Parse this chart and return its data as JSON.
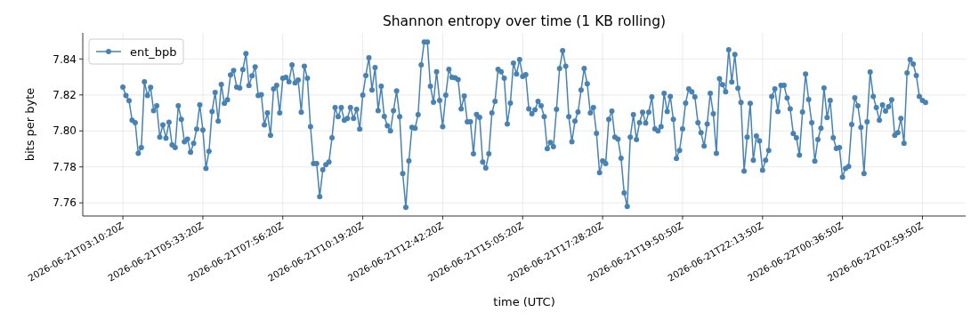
{
  "chart_data": {
    "type": "line",
    "title": "Shannon entropy over time (1 KB rolling)",
    "xlabel": "time (UTC)",
    "ylabel": "bits per byte",
    "ylim": [
      7.7527,
      7.8545
    ],
    "categories": [
      "2026-06-21T03:10:20Z",
      null,
      null,
      null,
      null,
      null,
      null,
      null,
      null,
      null,
      null,
      null,
      null,
      null,
      null,
      null,
      null,
      null,
      null,
      null,
      null,
      null,
      null,
      null,
      null,
      null,
      "2026-06-21T05:33:20Z",
      null,
      null,
      null,
      null,
      null,
      null,
      null,
      null,
      null,
      null,
      null,
      null,
      null,
      null,
      null,
      null,
      null,
      null,
      null,
      null,
      null,
      null,
      null,
      null,
      null,
      "2026-06-21T07:56:20Z",
      null,
      null,
      null,
      null,
      null,
      null,
      null,
      null,
      null,
      null,
      null,
      null,
      null,
      null,
      null,
      null,
      null,
      null,
      null,
      null,
      null,
      null,
      null,
      null,
      null,
      "2026-06-21T10:19:20Z",
      null,
      null,
      null,
      null,
      null,
      null,
      null,
      null,
      null,
      null,
      null,
      null,
      null,
      null,
      null,
      null,
      null,
      null,
      null,
      null,
      null,
      null,
      null,
      null,
      null,
      "2026-06-21T12:42:20Z",
      null,
      null,
      null,
      null,
      null,
      null,
      null,
      null,
      null,
      null,
      null,
      null,
      null,
      null,
      null,
      null,
      null,
      null,
      null,
      null,
      null,
      null,
      null,
      null,
      null,
      "2026-06-21T15:05:20Z",
      null,
      null,
      null,
      null,
      null,
      null,
      null,
      null,
      null,
      null,
      null,
      null,
      null,
      null,
      null,
      null,
      null,
      null,
      null,
      null,
      null,
      null,
      null,
      null,
      null,
      "2026-06-21T17:28:20Z",
      null,
      null,
      null,
      null,
      null,
      null,
      null,
      null,
      null,
      null,
      null,
      null,
      null,
      null,
      null,
      null,
      null,
      null,
      null,
      null,
      null,
      null,
      null,
      null,
      null,
      "2026-06-21T19:50:50Z",
      null,
      null,
      null,
      null,
      null,
      null,
      null,
      null,
      null,
      null,
      null,
      null,
      null,
      null,
      null,
      null,
      null,
      null,
      null,
      null,
      null,
      null,
      null,
      null,
      null,
      "2026-06-21T22:13:50Z",
      null,
      null,
      null,
      null,
      null,
      null,
      null,
      null,
      null,
      null,
      null,
      null,
      null,
      null,
      null,
      null,
      null,
      null,
      null,
      null,
      null,
      null,
      null,
      null,
      null,
      "2026-06-22T00:36:50Z",
      null,
      null,
      null,
      null,
      null,
      null,
      null,
      null,
      null,
      null,
      null,
      null,
      null,
      null,
      null,
      null,
      null,
      null,
      null,
      null,
      null,
      null,
      null,
      null,
      null,
      "2026-06-22T02:59:50Z",
      null
    ],
    "yticks": [
      {
        "value": 7.76,
        "label": "7.76"
      },
      {
        "value": 7.78,
        "label": "7.78"
      },
      {
        "value": 7.8,
        "label": "7.80"
      },
      {
        "value": 7.82,
        "label": "7.82"
      },
      {
        "value": 7.84,
        "label": "7.84"
      }
    ],
    "grid": true,
    "legend": "top left",
    "marker": "circle",
    "line_style": "solid",
    "series": [
      {
        "name": "ent_bpb",
        "color": "#4682b4",
        "values": [
          7.8244,
          7.8197,
          7.8168,
          7.8059,
          7.8046,
          7.7876,
          7.7908,
          7.8273,
          7.8197,
          7.8242,
          7.8113,
          7.814,
          7.7965,
          7.8034,
          7.796,
          7.8048,
          7.7922,
          7.7908,
          7.814,
          7.8064,
          7.794,
          7.7955,
          7.7881,
          7.7931,
          7.801,
          7.8145,
          7.8005,
          7.7792,
          7.7886,
          7.8108,
          7.8214,
          7.8054,
          7.8258,
          7.8153,
          7.8173,
          7.8311,
          7.8336,
          7.8244,
          7.8239,
          7.8341,
          7.843,
          7.8252,
          7.8306,
          7.8356,
          7.8197,
          7.8202,
          7.8034,
          7.81,
          7.7975,
          7.8234,
          7.8253,
          7.81,
          7.8293,
          7.8298,
          7.8273,
          7.8367,
          7.8267,
          7.8283,
          7.8104,
          7.836,
          7.8293,
          7.8024,
          7.7819,
          7.7819,
          7.7634,
          7.7784,
          7.7812,
          7.7827,
          7.7962,
          7.813,
          7.8079,
          7.813,
          7.8059,
          7.8069,
          7.813,
          7.8069,
          7.812,
          7.801,
          7.8199,
          7.8308,
          7.8407,
          7.8227,
          7.8352,
          7.8113,
          7.8248,
          7.808,
          7.8029,
          7.8,
          7.8113,
          7.8222,
          7.8079,
          7.7763,
          7.7575,
          7.7833,
          7.802,
          7.8015,
          7.809,
          7.8367,
          7.8494,
          7.8494,
          7.8248,
          7.816,
          7.8329,
          7.8169,
          7.8024,
          7.8199,
          7.8342,
          7.8298,
          7.8295,
          7.8286,
          7.8123,
          7.8194,
          7.8051,
          7.8051,
          7.7873,
          7.8092,
          7.8076,
          7.7827,
          7.7794,
          7.7873,
          7.81,
          7.8164,
          7.8342,
          7.8329,
          7.8293,
          7.8039,
          7.8155,
          7.8377,
          7.8316,
          7.8397,
          7.8303,
          7.8313,
          7.8123,
          7.8095,
          7.8118,
          7.8164,
          7.814,
          7.8079,
          7.7901,
          7.7936,
          7.7912,
          7.812,
          7.8347,
          7.8446,
          7.836,
          7.8079,
          7.794,
          7.8054,
          7.8105,
          7.8227,
          7.8347,
          7.8262,
          7.81,
          7.813,
          7.7987,
          7.7768,
          7.7833,
          7.7819,
          7.8064,
          7.811,
          7.7965,
          7.7954,
          7.7848,
          7.7656,
          7.758,
          7.7965,
          7.809,
          7.7952,
          7.8046,
          7.8104,
          7.8044,
          7.8104,
          7.8189,
          7.8011,
          7.8,
          7.8024,
          7.8209,
          7.8108,
          7.8192,
          7.8064,
          7.7847,
          7.7891,
          7.8011,
          7.8155,
          7.8234,
          7.8217,
          7.8189,
          7.8046,
          7.799,
          7.7916,
          7.8039,
          7.8209,
          7.8095,
          7.7876,
          7.8291,
          7.8257,
          7.8217,
          7.8451,
          7.8272,
          7.8425,
          7.8237,
          7.8158,
          7.7777,
          7.7965,
          7.8153,
          7.7837,
          7.7972,
          7.7945,
          7.7782,
          7.7837,
          7.7891,
          7.8192,
          7.8234,
          7.8108,
          7.8253,
          7.8253,
          7.8183,
          7.8123,
          7.7985,
          7.7962,
          7.7866,
          7.8105,
          7.8316,
          7.8174,
          7.8046,
          7.7832,
          7.7952,
          7.8015,
          7.8239,
          7.8074,
          7.8169,
          7.7962,
          7.7903,
          7.7908,
          7.7743,
          7.7792,
          7.7802,
          7.8036,
          7.8184,
          7.814,
          7.802,
          7.7763,
          7.8051,
          7.8328,
          7.8192,
          7.813,
          7.8059,
          7.8145,
          7.811,
          7.8135,
          7.8173,
          7.7975,
          7.799,
          7.8069,
          7.7931,
          7.8323,
          7.8397,
          7.8372,
          7.8308,
          7.8192,
          7.8169,
          7.8158
        ]
      }
    ]
  }
}
